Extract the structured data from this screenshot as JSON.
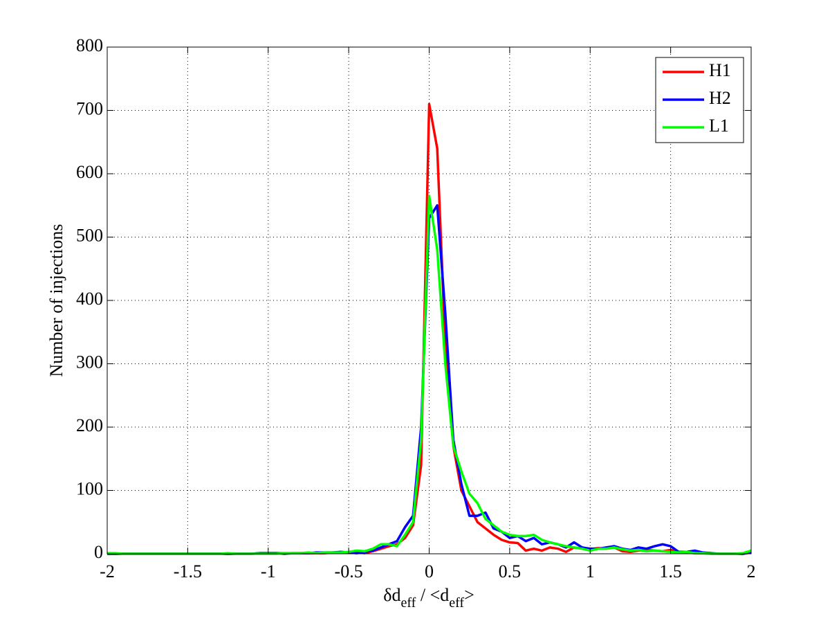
{
  "chart_data": {
    "type": "line",
    "xlabel": [
      "δd",
      "eff",
      " / <d",
      "eff",
      ">"
    ],
    "ylabel": "Number of injections",
    "x": [
      -2,
      -1.95,
      -1.9,
      -1.85,
      -1.8,
      -1.75,
      -1.7,
      -1.65,
      -1.6,
      -1.55,
      -1.5,
      -1.45,
      -1.4,
      -1.35,
      -1.3,
      -1.25,
      -1.2,
      -1.15,
      -1.1,
      -1.05,
      -1,
      -0.95,
      -0.9,
      -0.85,
      -0.8,
      -0.75,
      -0.7,
      -0.65,
      -0.6,
      -0.55,
      -0.5,
      -0.45,
      -0.4,
      -0.35,
      -0.3,
      -0.25,
      -0.2,
      -0.15,
      -0.1,
      -0.05,
      0,
      0.05,
      0.1,
      0.15,
      0.2,
      0.25,
      0.3,
      0.35,
      0.4,
      0.45,
      0.5,
      0.55,
      0.6,
      0.65,
      0.7,
      0.75,
      0.8,
      0.85,
      0.9,
      0.95,
      1,
      1.05,
      1.1,
      1.15,
      1.2,
      1.25,
      1.3,
      1.35,
      1.4,
      1.45,
      1.5,
      1.55,
      1.6,
      1.65,
      1.7,
      1.75,
      1.8,
      1.85,
      1.9,
      1.95,
      2
    ],
    "series": [
      {
        "name": "H1",
        "color": "#ff0000",
        "values": [
          0,
          0,
          0,
          0,
          0,
          0,
          0,
          0,
          0,
          0,
          0,
          0,
          0,
          0,
          0,
          0,
          0,
          0,
          0,
          1,
          1,
          1,
          1,
          1,
          1,
          1,
          1,
          1,
          2,
          2,
          2,
          3,
          1,
          4,
          8,
          12,
          15,
          25,
          45,
          140,
          710,
          640,
          330,
          170,
          100,
          75,
          50,
          40,
          30,
          22,
          18,
          17,
          5,
          8,
          5,
          10,
          8,
          3,
          10,
          8,
          7,
          9,
          8,
          10,
          4,
          3,
          5,
          6,
          5,
          4,
          6,
          3,
          2,
          1,
          1,
          0,
          0,
          0,
          0,
          0,
          2
        ]
      },
      {
        "name": "H2",
        "color": "#0000ff",
        "values": [
          0,
          0,
          0,
          0,
          0,
          0,
          0,
          0,
          0,
          0,
          0,
          0,
          0,
          0,
          0,
          0,
          0,
          0,
          0,
          1,
          1,
          1,
          0,
          1,
          1,
          1,
          2,
          2,
          2,
          3,
          2,
          1,
          3,
          5,
          10,
          15,
          20,
          42,
          60,
          200,
          530,
          550,
          380,
          180,
          110,
          60,
          60,
          65,
          40,
          35,
          25,
          28,
          20,
          25,
          15,
          18,
          15,
          10,
          18,
          10,
          8,
          8,
          10,
          12,
          8,
          6,
          10,
          8,
          12,
          15,
          12,
          3,
          3,
          5,
          2,
          1,
          0,
          0,
          0,
          0,
          3
        ]
      },
      {
        "name": "L1",
        "color": "#00ff00",
        "values": [
          1,
          1,
          0,
          0,
          0,
          0,
          0,
          0,
          0,
          0,
          0,
          0,
          0,
          0,
          0,
          1,
          0,
          0,
          0,
          0,
          0,
          0,
          1,
          1,
          1,
          2,
          1,
          2,
          2,
          2,
          3,
          5,
          4,
          8,
          15,
          15,
          12,
          30,
          50,
          180,
          565,
          480,
          300,
          170,
          130,
          95,
          80,
          55,
          45,
          35,
          30,
          28,
          28,
          30,
          22,
          18,
          15,
          12,
          10,
          8,
          5,
          8,
          8,
          10,
          7,
          5,
          6,
          4,
          5,
          4,
          3,
          2,
          3,
          1,
          1,
          0,
          0,
          0,
          0,
          1,
          5
        ]
      }
    ],
    "xlim": [
      -2,
      2
    ],
    "xticks": [
      -2,
      -1.5,
      -1,
      -0.5,
      0,
      0.5,
      1,
      1.5,
      2
    ],
    "ylim": [
      0,
      800
    ],
    "yticks": [
      0,
      100,
      200,
      300,
      400,
      500,
      600,
      700,
      800
    ],
    "grid": true,
    "legend": "northeast"
  }
}
